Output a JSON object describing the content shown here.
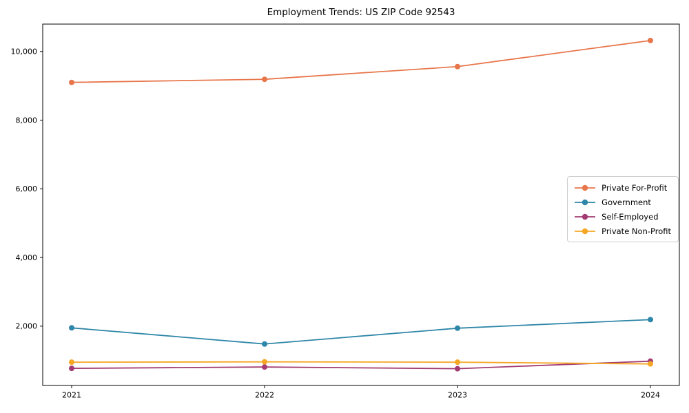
{
  "title": "Employment Trends: US ZIP Code 92543",
  "chart_data": {
    "type": "line",
    "title": "Employment Trends: US ZIP Code 92543",
    "xlabel": "",
    "ylabel": "",
    "x": [
      2021,
      2022,
      2023,
      2024
    ],
    "x_tick_labels": [
      "2021",
      "2022",
      "2023",
      "2024"
    ],
    "series": [
      {
        "name": "Private For-Profit",
        "color": "#E8764B",
        "values": [
          9100,
          9190,
          9560,
          10320
        ]
      },
      {
        "name": "Government",
        "color": "#2E86A8",
        "values": [
          1950,
          1480,
          1940,
          2190
        ]
      },
      {
        "name": "Self-Employed",
        "color": "#A23B72",
        "values": [
          770,
          810,
          760,
          980
        ]
      },
      {
        "name": "Private Non-Profit",
        "color": "#F5A623",
        "values": [
          950,
          960,
          950,
          900
        ]
      }
    ],
    "xlim": [
      2020.85,
      2024.15
    ],
    "ylim": [
      272,
      10798
    ],
    "yticks": [
      2000,
      4000,
      6000,
      8000,
      10000
    ],
    "ytick_labels": [
      "2,000",
      "4,000",
      "6,000",
      "8,000",
      "10,000"
    ],
    "grid": false,
    "legend_position": "center right",
    "marker": "circle",
    "axis_color": "#000000",
    "background_color": "#ffffff"
  }
}
